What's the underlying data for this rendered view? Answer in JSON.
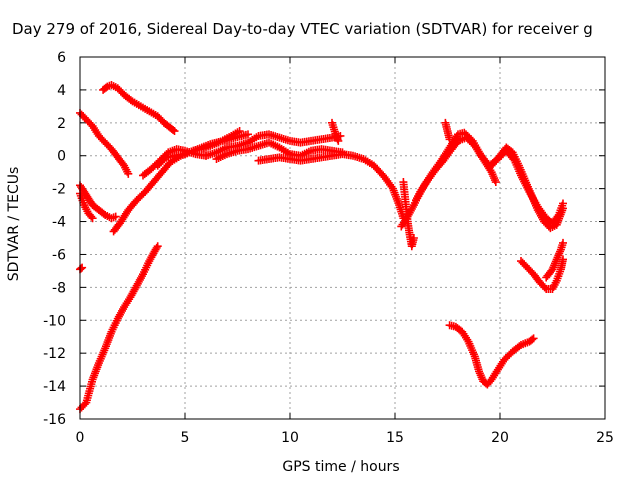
{
  "chart_data": {
    "type": "scatter",
    "title": "Day 279 of 2016, Sidereal Day-to-day VTEC variation (SDTVAR) for receiver g",
    "xlabel": "GPS time / hours",
    "ylabel": "SDTVAR / TECUs",
    "xlim": [
      0,
      25
    ],
    "ylim": [
      -16,
      6
    ],
    "xticks": [
      "0",
      "5",
      "10",
      "15",
      "20",
      "25"
    ],
    "yticks": [
      "-16",
      "-14",
      "-12",
      "-10",
      "-8",
      "-6",
      "-4",
      "-2",
      "0",
      "2",
      "4",
      "6"
    ],
    "grid": true,
    "marker": "+",
    "color": "#ff0000",
    "series": [
      {
        "points": [
          [
            1.1,
            4.0
          ],
          [
            1.3,
            4.2
          ],
          [
            1.5,
            4.3
          ],
          [
            1.8,
            4.1
          ],
          [
            2.1,
            3.7
          ],
          [
            2.5,
            3.3
          ],
          [
            2.9,
            3.0
          ],
          [
            3.3,
            2.7
          ],
          [
            3.7,
            2.4
          ],
          [
            4.0,
            2.0
          ],
          [
            4.3,
            1.7
          ],
          [
            4.5,
            1.5
          ]
        ]
      },
      {
        "points": [
          [
            0.0,
            2.6
          ],
          [
            0.3,
            2.2
          ],
          [
            0.6,
            1.8
          ],
          [
            0.9,
            1.2
          ],
          [
            1.2,
            0.8
          ],
          [
            1.5,
            0.4
          ],
          [
            1.8,
            -0.1
          ],
          [
            2.1,
            -0.6
          ],
          [
            2.3,
            -1.1
          ]
        ]
      },
      {
        "points": [
          [
            0.0,
            -1.8
          ],
          [
            0.2,
            -2.2
          ],
          [
            0.4,
            -2.6
          ],
          [
            0.6,
            -3.0
          ],
          [
            0.9,
            -3.3
          ],
          [
            1.2,
            -3.6
          ],
          [
            1.5,
            -3.8
          ],
          [
            1.7,
            -3.7
          ]
        ]
      },
      {
        "points": [
          [
            0.0,
            -2.3
          ],
          [
            0.2,
            -3.0
          ],
          [
            0.4,
            -3.5
          ],
          [
            0.6,
            -3.8
          ]
        ]
      },
      {
        "points": [
          [
            0.0,
            -6.9
          ],
          [
            0.1,
            -6.8
          ]
        ]
      },
      {
        "points": [
          [
            0.0,
            -15.4
          ],
          [
            0.3,
            -15.0
          ],
          [
            0.6,
            -13.6
          ],
          [
            0.9,
            -12.6
          ],
          [
            1.2,
            -11.7
          ],
          [
            1.5,
            -10.7
          ],
          [
            1.8,
            -9.9
          ],
          [
            2.1,
            -9.2
          ],
          [
            2.4,
            -8.6
          ],
          [
            2.7,
            -7.9
          ],
          [
            3.0,
            -7.2
          ],
          [
            3.3,
            -6.4
          ],
          [
            3.6,
            -5.7
          ],
          [
            3.7,
            -5.5
          ]
        ]
      },
      {
        "points": [
          [
            1.6,
            -4.6
          ],
          [
            1.9,
            -4.1
          ],
          [
            2.3,
            -3.3
          ],
          [
            2.7,
            -2.7
          ],
          [
            3.1,
            -2.2
          ],
          [
            3.5,
            -1.6
          ],
          [
            3.9,
            -1.0
          ],
          [
            4.3,
            -0.4
          ],
          [
            4.8,
            0.0
          ],
          [
            5.4,
            0.3
          ],
          [
            6.0,
            0.5
          ],
          [
            6.6,
            0.8
          ],
          [
            7.2,
            1.2
          ],
          [
            7.6,
            1.5
          ]
        ]
      },
      {
        "points": [
          [
            3.0,
            -1.2
          ],
          [
            3.4,
            -0.8
          ],
          [
            3.8,
            -0.3
          ],
          [
            4.2,
            0.2
          ],
          [
            4.6,
            0.4
          ],
          [
            5.0,
            0.3
          ],
          [
            5.5,
            0.1
          ],
          [
            6.0,
            0.0
          ]
        ]
      },
      {
        "points": [
          [
            3.7,
            -0.6
          ],
          [
            4.1,
            -0.1
          ],
          [
            4.5,
            0.0
          ],
          [
            5.0,
            0.1
          ],
          [
            5.6,
            0.4
          ],
          [
            6.2,
            0.7
          ],
          [
            6.8,
            0.9
          ],
          [
            7.4,
            1.1
          ],
          [
            8.0,
            1.3
          ]
        ]
      },
      {
        "points": [
          [
            6.0,
            0.0
          ],
          [
            6.5,
            0.2
          ],
          [
            7.0,
            0.5
          ],
          [
            7.5,
            0.6
          ],
          [
            8.0,
            0.8
          ],
          [
            8.5,
            1.2
          ],
          [
            9.0,
            1.3
          ],
          [
            9.5,
            1.1
          ],
          [
            10.0,
            0.9
          ],
          [
            10.5,
            0.8
          ],
          [
            11.0,
            0.9
          ],
          [
            11.5,
            1.0
          ],
          [
            12.0,
            1.1
          ],
          [
            12.4,
            1.2
          ]
        ]
      },
      {
        "points": [
          [
            6.5,
            -0.2
          ],
          [
            7.0,
            0.1
          ],
          [
            7.5,
            0.3
          ],
          [
            8.0,
            0.4
          ],
          [
            8.5,
            0.6
          ],
          [
            9.0,
            0.8
          ],
          [
            9.5,
            0.5
          ],
          [
            10.0,
            0.1
          ],
          [
            10.5,
            0.0
          ],
          [
            11.0,
            0.3
          ],
          [
            11.5,
            0.4
          ],
          [
            12.0,
            0.3
          ],
          [
            12.5,
            0.2
          ]
        ]
      },
      {
        "points": [
          [
            8.5,
            -0.3
          ],
          [
            9.0,
            -0.2
          ],
          [
            9.5,
            -0.1
          ],
          [
            10.0,
            -0.2
          ],
          [
            10.5,
            -0.3
          ],
          [
            11.0,
            -0.2
          ],
          [
            11.5,
            -0.1
          ],
          [
            12.0,
            0.0
          ],
          [
            12.5,
            0.1
          ],
          [
            13.0,
            0.0
          ],
          [
            13.5,
            -0.2
          ],
          [
            14.0,
            -0.6
          ],
          [
            14.5,
            -1.3
          ],
          [
            14.9,
            -2.0
          ],
          [
            15.2,
            -3.0
          ],
          [
            15.4,
            -3.8
          ]
        ]
      },
      {
        "points": [
          [
            12.0,
            2.0
          ],
          [
            12.1,
            1.6
          ],
          [
            12.2,
            1.2
          ],
          [
            12.3,
            0.9
          ]
        ]
      },
      {
        "points": [
          [
            15.4,
            -1.6
          ],
          [
            15.5,
            -2.8
          ],
          [
            15.6,
            -4.0
          ],
          [
            15.7,
            -4.8
          ],
          [
            15.8,
            -5.5
          ],
          [
            15.9,
            -5.0
          ]
        ]
      },
      {
        "points": [
          [
            15.3,
            -4.3
          ],
          [
            15.6,
            -3.7
          ],
          [
            15.9,
            -3.0
          ],
          [
            16.2,
            -2.2
          ],
          [
            16.5,
            -1.6
          ],
          [
            16.9,
            -0.9
          ],
          [
            17.3,
            -0.3
          ],
          [
            17.7,
            0.4
          ],
          [
            18.0,
            0.9
          ],
          [
            18.4,
            1.1
          ],
          [
            18.8,
            0.6
          ],
          [
            19.2,
            -0.2
          ],
          [
            19.6,
            -1.0
          ],
          [
            19.8,
            -1.6
          ]
        ]
      },
      {
        "points": [
          [
            16.0,
            -2.7
          ],
          [
            16.4,
            -1.8
          ],
          [
            16.8,
            -1.0
          ],
          [
            17.2,
            -0.3
          ],
          [
            17.6,
            0.5
          ],
          [
            18.0,
            1.3
          ],
          [
            18.3,
            1.4
          ],
          [
            18.7,
            0.9
          ],
          [
            19.1,
            0.0
          ],
          [
            19.5,
            -0.6
          ],
          [
            19.9,
            -0.2
          ],
          [
            20.3,
            0.3
          ],
          [
            20.7,
            -0.3
          ],
          [
            21.0,
            -1.2
          ],
          [
            21.4,
            -2.2
          ],
          [
            21.8,
            -3.1
          ],
          [
            22.2,
            -3.8
          ],
          [
            22.5,
            -4.1
          ],
          [
            22.8,
            -3.6
          ],
          [
            23.0,
            -2.9
          ]
        ]
      },
      {
        "points": [
          [
            17.4,
            2.0
          ],
          [
            17.5,
            1.5
          ],
          [
            17.6,
            1.0
          ]
        ]
      },
      {
        "points": [
          [
            19.6,
            -0.6
          ],
          [
            20.0,
            0.0
          ],
          [
            20.3,
            0.5
          ],
          [
            20.6,
            0.2
          ],
          [
            20.9,
            -0.6
          ],
          [
            21.2,
            -1.5
          ],
          [
            21.5,
            -2.4
          ],
          [
            21.8,
            -3.3
          ],
          [
            22.1,
            -4.0
          ],
          [
            22.4,
            -4.4
          ],
          [
            22.7,
            -4.2
          ],
          [
            23.0,
            -3.2
          ]
        ]
      },
      {
        "points": [
          [
            17.6,
            -10.3
          ],
          [
            17.9,
            -10.4
          ],
          [
            18.2,
            -10.7
          ],
          [
            18.5,
            -11.3
          ],
          [
            18.8,
            -12.2
          ],
          [
            19.0,
            -13.1
          ],
          [
            19.2,
            -13.7
          ],
          [
            19.4,
            -13.9
          ],
          [
            19.6,
            -13.6
          ],
          [
            19.9,
            -13.0
          ],
          [
            20.2,
            -12.4
          ],
          [
            20.6,
            -11.9
          ],
          [
            21.0,
            -11.5
          ],
          [
            21.4,
            -11.3
          ],
          [
            21.6,
            -11.1
          ]
        ]
      },
      {
        "points": [
          [
            21.0,
            -6.4
          ],
          [
            21.3,
            -6.8
          ],
          [
            21.6,
            -7.2
          ],
          [
            21.9,
            -7.7
          ],
          [
            22.2,
            -8.1
          ],
          [
            22.5,
            -8.1
          ],
          [
            22.7,
            -7.6
          ],
          [
            22.9,
            -6.9
          ],
          [
            23.0,
            -6.3
          ]
        ]
      },
      {
        "points": [
          [
            22.2,
            -7.4
          ],
          [
            22.5,
            -6.9
          ],
          [
            22.7,
            -6.3
          ],
          [
            22.9,
            -5.7
          ],
          [
            23.0,
            -5.3
          ]
        ]
      }
    ]
  }
}
